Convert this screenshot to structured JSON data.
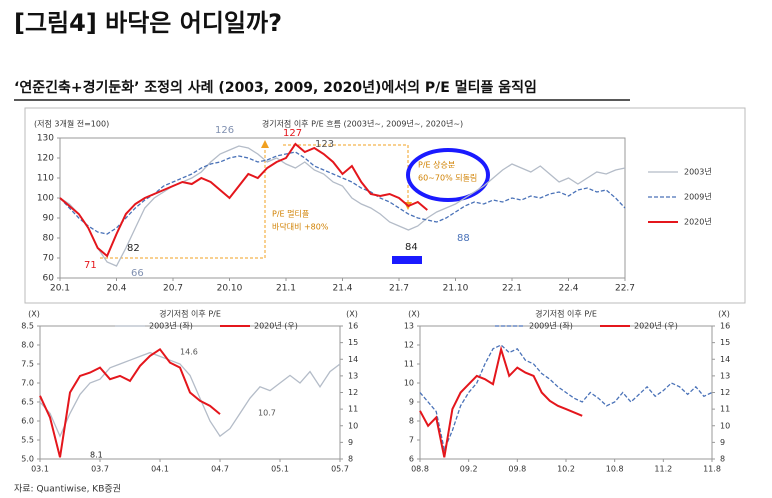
{
  "header": {
    "title": "[그림4] 바닥은 어디일까?",
    "subtitle": "‘연준긴축+경기둔화’ 조정의 사례 (2003, 2009, 2020년)에서의 P/E 멀티플 움직임"
  },
  "source": "자료: Quantiwise, KB증권",
  "chart_data": [
    {
      "type": "line",
      "title": "경기저점 이후 P/E 흐름 (2003년~, 2009년~, 2020년~)",
      "y_label": "(저점 3개월 전=100)",
      "categories": [
        "20.1",
        null,
        null,
        null,
        null,
        null,
        "20.4",
        null,
        null,
        null,
        null,
        null,
        "20.7",
        null,
        null,
        null,
        null,
        null,
        "20.10",
        null,
        null,
        null,
        null,
        null,
        "21.1",
        null,
        null,
        null,
        null,
        null,
        "21.4",
        null,
        null,
        null,
        null,
        null,
        "21.7",
        null,
        null,
        null,
        null,
        null,
        "21.10",
        null,
        null,
        null,
        null,
        null,
        "22.1",
        null,
        null,
        null,
        null,
        null,
        "22.4",
        null,
        null,
        null,
        null,
        null,
        "22.7"
      ],
      "series": [
        {
          "name": "2003년",
          "color": "#b4bcc8",
          "dash": false,
          "values": [
            100,
            97,
            92,
            85,
            75,
            68,
            66,
            75,
            85,
            95,
            100,
            103,
            106,
            108,
            110,
            113,
            118,
            122,
            124,
            126,
            125,
            122,
            118,
            120,
            117,
            115,
            118,
            114,
            112,
            108,
            106,
            100,
            97,
            95,
            92,
            88,
            86,
            84,
            86,
            90,
            93,
            95,
            97,
            100,
            103,
            106,
            110,
            114,
            117,
            115,
            113,
            116,
            112,
            108,
            110,
            107,
            110,
            113,
            112,
            114,
            115
          ]
        },
        {
          "name": "2009년",
          "color": "#4a72b8",
          "dash": true,
          "values": [
            100,
            95,
            90,
            86,
            83,
            82,
            85,
            90,
            95,
            99,
            102,
            106,
            108,
            110,
            112,
            115,
            117,
            118,
            120,
            121,
            120,
            118,
            119,
            121,
            122,
            123,
            120,
            116,
            114,
            112,
            110,
            108,
            105,
            103,
            100,
            98,
            95,
            92,
            90,
            89,
            88,
            90,
            93,
            96,
            98,
            97,
            99,
            98,
            100,
            99,
            101,
            100,
            102,
            103,
            101,
            104,
            105,
            103,
            104,
            100,
            95
          ]
        },
        {
          "name": "2020년",
          "color": "#e4161c",
          "dash": false,
          "values": [
            100,
            96,
            92,
            85,
            75,
            71,
            82,
            92,
            97,
            100,
            102,
            104,
            106,
            108,
            107,
            110,
            108,
            104,
            100,
            106,
            112,
            110,
            115,
            118,
            120,
            127,
            123,
            125,
            122,
            118,
            112,
            116,
            108,
            102,
            101,
            102,
            100,
            96,
            98,
            94,
            null,
            null,
            null,
            null,
            null,
            null,
            null,
            null,
            null,
            null,
            null,
            null,
            null,
            null,
            null,
            null,
            null,
            null,
            null,
            null,
            null
          ]
        }
      ],
      "ylim": [
        60,
        130
      ],
      "yticks": [
        60,
        70,
        80,
        90,
        100,
        110,
        120,
        130
      ],
      "legend": "right",
      "annotations": [
        "126",
        "127",
        "123",
        "82",
        "71",
        "66",
        "84",
        "88",
        "P/E 멀티플",
        "바닥대비 +80%",
        "P/E 상승분",
        "60~70% 되돌림"
      ]
    },
    {
      "type": "line",
      "title": "경기저점 이후 P/E",
      "y_label": "(X)",
      "y2_label": "(X)",
      "categories": [
        "03.1",
        null,
        null,
        null,
        null,
        null,
        "03.7",
        null,
        null,
        null,
        null,
        null,
        "04.1",
        null,
        null,
        null,
        null,
        null,
        "04.7",
        null,
        null,
        null,
        null,
        null,
        "05.1",
        null,
        null,
        null,
        null,
        null,
        "05.7"
      ],
      "series": [
        {
          "name": "2003년 (좌)",
          "color": "#b4bcc8",
          "dash": false,
          "values": [
            6.5,
            6.2,
            5.6,
            6.2,
            6.7,
            7.0,
            7.1,
            7.4,
            7.5,
            7.6,
            7.7,
            7.8,
            7.7,
            7.6,
            7.5,
            7.2,
            6.6,
            6.0,
            5.6,
            5.8,
            6.2,
            6.6,
            6.9,
            6.8,
            7.0,
            7.2,
            7.0,
            7.3,
            6.9,
            7.3,
            7.5
          ]
        },
        {
          "name": "2020년 (우)",
          "color": "#e4161c",
          "dash": false,
          "axis": "y2",
          "values": [
            11.8,
            10.5,
            8.1,
            12.0,
            13.0,
            13.2,
            13.5,
            12.8,
            13.0,
            12.7,
            13.6,
            14.2,
            14.6,
            13.8,
            13.5,
            12.0,
            11.5,
            11.2,
            10.7,
            null,
            null,
            null,
            null,
            null,
            null,
            null,
            null,
            null,
            null,
            null,
            null
          ]
        }
      ],
      "ylim": [
        5,
        8.5
      ],
      "yticks": [
        {
          "value": 5,
          "label": "5.0"
        },
        5.5,
        {
          "value": 6,
          "label": "6.0"
        },
        6.5,
        {
          "value": 7,
          "label": "7.0"
        },
        7.5,
        {
          "value": 8,
          "label": "8.0"
        },
        8.5
      ],
      "y2lim": [
        8,
        16
      ],
      "y2ticks": [
        8,
        9,
        10,
        11,
        12,
        13,
        14,
        15,
        16
      ],
      "legend": "top",
      "annotations": [
        "8.1",
        "14.6",
        "10.7"
      ]
    },
    {
      "type": "line",
      "title": "경기저점 이후 P/E",
      "y_label": "(X)",
      "y2_label": "(X)",
      "categories": [
        "08.8",
        null,
        null,
        null,
        null,
        null,
        "09.2",
        null,
        null,
        null,
        null,
        null,
        "09.8",
        null,
        null,
        null,
        null,
        null,
        "10.2",
        null,
        null,
        null,
        null,
        null,
        "10.8",
        null,
        null,
        null,
        null,
        null,
        "11.2",
        null,
        null,
        null,
        null,
        null,
        "11.8"
      ],
      "series": [
        {
          "name": "2009년 (좌)",
          "color": "#4a72b8",
          "dash": true,
          "values": [
            9.5,
            9.0,
            8.5,
            6.5,
            7.5,
            8.8,
            9.5,
            10.0,
            11.0,
            11.8,
            12.0,
            11.6,
            11.8,
            11.2,
            11.0,
            10.5,
            10.2,
            9.8,
            9.5,
            9.2,
            9.0,
            9.5,
            9.2,
            8.8,
            9.0,
            9.5,
            9.0,
            9.4,
            9.8,
            9.3,
            9.6,
            10.0,
            9.8,
            9.4,
            9.8,
            9.3,
            9.5
          ]
        },
        {
          "name": "2020년 (우)",
          "color": "#e4161c",
          "dash": false,
          "axis": "y2",
          "values": [
            10.9,
            10.0,
            10.5,
            8.1,
            11.0,
            12.0,
            12.5,
            13.0,
            12.8,
            12.5,
            14.6,
            13.0,
            13.5,
            13.2,
            13.0,
            12.0,
            11.5,
            11.2,
            11.0,
            10.8,
            10.6,
            null,
            null,
            null,
            null,
            null,
            null,
            null,
            null,
            null,
            null,
            null,
            null,
            null,
            null,
            null,
            null
          ]
        }
      ],
      "ylim": [
        6,
        13
      ],
      "yticks": [
        6,
        7,
        8,
        9,
        10,
        11,
        12,
        13
      ],
      "y2lim": [
        8,
        16
      ],
      "y2ticks": [
        8,
        9,
        10,
        11,
        12,
        13,
        14,
        15,
        16
      ],
      "legend": "top"
    }
  ]
}
